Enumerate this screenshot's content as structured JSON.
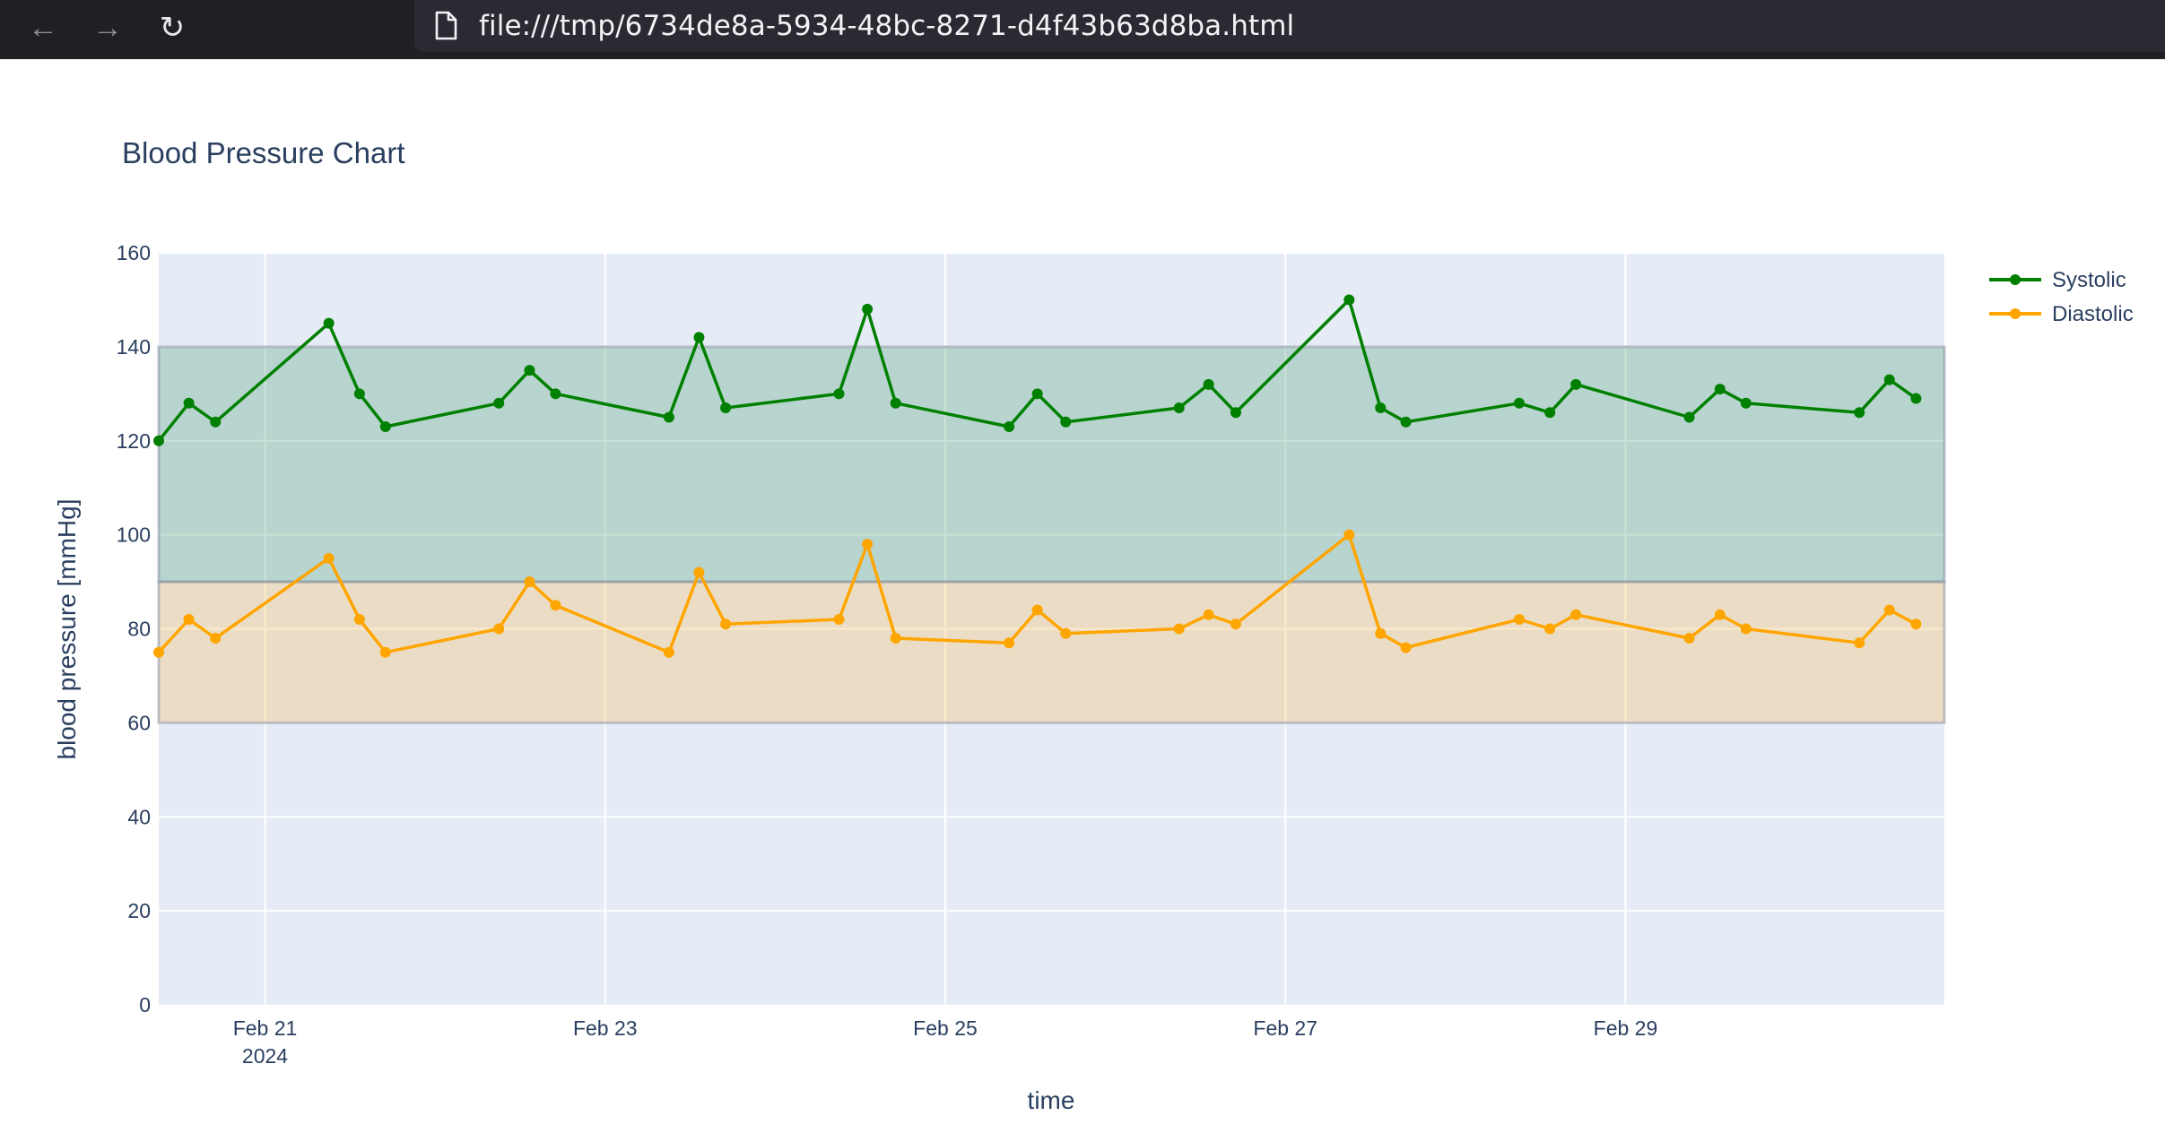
{
  "browser": {
    "url": "file:///tmp/6734de8a-5934-48bc-8271-d4f43b63d8ba.html"
  },
  "chart_data": {
    "type": "line",
    "title": "Blood Pressure Chart",
    "xlabel": "time",
    "ylabel": "blood pressure [mmHg]",
    "ylim": [
      0,
      160
    ],
    "y_ticks": [
      0,
      20,
      40,
      60,
      80,
      100,
      120,
      140,
      160
    ],
    "xlim": [
      "2024-02-20 09:00",
      "2024-03-01 21:00"
    ],
    "x_ticks": [
      {
        "date": "2024-02-21",
        "label": "Feb 21",
        "sublabel": "2024"
      },
      {
        "date": "2024-02-23",
        "label": "Feb 23",
        "sublabel": ""
      },
      {
        "date": "2024-02-25",
        "label": "Feb 25",
        "sublabel": ""
      },
      {
        "date": "2024-02-27",
        "label": "Feb 27",
        "sublabel": ""
      },
      {
        "date": "2024-02-29",
        "label": "Feb 29",
        "sublabel": ""
      }
    ],
    "grid": true,
    "legend_position": "top-right",
    "bands": [
      {
        "name": "systolic-range",
        "y0": 90,
        "y1": 140,
        "color": "#2e8b57",
        "opacity": 0.25
      },
      {
        "name": "diastolic-range",
        "y0": 60,
        "y1": 90,
        "color": "#f5c36b",
        "opacity": 0.35
      }
    ],
    "x": [
      "2024-02-20 09:00",
      "2024-02-20 13:15",
      "2024-02-20 17:00",
      "2024-02-21 09:00",
      "2024-02-21 13:20",
      "2024-02-21 17:00",
      "2024-02-22 09:00",
      "2024-02-22 13:20",
      "2024-02-22 17:00",
      "2024-02-23 09:00",
      "2024-02-23 13:15",
      "2024-02-23 17:00",
      "2024-02-24 09:00",
      "2024-02-24 13:00",
      "2024-02-24 17:00",
      "2024-02-25 09:00",
      "2024-02-25 13:00",
      "2024-02-25 17:00",
      "2024-02-26 09:00",
      "2024-02-26 13:10",
      "2024-02-26 17:00",
      "2024-02-27 09:00",
      "2024-02-27 13:25",
      "2024-02-27 17:00",
      "2024-02-28 09:00",
      "2024-02-28 13:20",
      "2024-02-28 17:00",
      "2024-02-29 09:00",
      "2024-02-29 13:20",
      "2024-02-29 17:00",
      "2024-03-01 09:00",
      "2024-03-01 13:15",
      "2024-03-01 17:00"
    ],
    "series": [
      {
        "name": "Systolic",
        "color": "#008000",
        "values": [
          120,
          128,
          124,
          145,
          130,
          123,
          128,
          135,
          130,
          125,
          142,
          127,
          130,
          148,
          128,
          123,
          130,
          124,
          127,
          132,
          126,
          150,
          127,
          124,
          128,
          126,
          132,
          125,
          131,
          128,
          126,
          133,
          129
        ]
      },
      {
        "name": "Diastolic",
        "color": "#ffa500",
        "values": [
          75,
          82,
          78,
          95,
          82,
          75,
          80,
          90,
          85,
          75,
          92,
          81,
          82,
          98,
          78,
          77,
          84,
          79,
          80,
          83,
          81,
          100,
          79,
          76,
          82,
          80,
          83,
          78,
          83,
          80,
          77,
          84,
          81
        ]
      }
    ]
  }
}
